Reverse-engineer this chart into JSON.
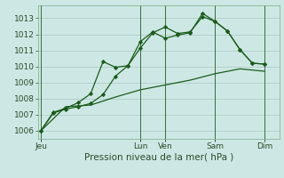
{
  "title": "Pression niveau de la mer( hPa )",
  "background_color": "#cde8e4",
  "grid_color": "#b0cccc",
  "line_color": "#1a5c1a",
  "ylim": [
    1005.5,
    1013.8
  ],
  "yticks": [
    1006,
    1007,
    1008,
    1009,
    1010,
    1011,
    1012,
    1013
  ],
  "xtick_labels": [
    "Jeu",
    "",
    "Lun",
    "Ven",
    "",
    "Sam",
    "",
    "Dim"
  ],
  "xtick_positions": [
    0,
    2,
    4,
    5,
    6,
    7,
    8,
    9
  ],
  "vlines": [
    0,
    4,
    5,
    7,
    9
  ],
  "xlim": [
    -0.1,
    9.6
  ],
  "series1_x": [
    0,
    0.5,
    1.0,
    1.5,
    2.0,
    2.5,
    3.0,
    3.5,
    4.0,
    4.5,
    5.0,
    5.5,
    6.0,
    6.5,
    7.0,
    7.5,
    8.0,
    8.5,
    9.0
  ],
  "series1_y": [
    1006.0,
    1007.1,
    1007.35,
    1007.5,
    1007.7,
    1008.25,
    1009.4,
    1010.05,
    1011.15,
    1012.1,
    1012.45,
    1012.05,
    1012.15,
    1013.1,
    1012.8,
    1012.2,
    1011.05,
    1010.2,
    1010.15
  ],
  "series2_x": [
    0,
    0.5,
    1.0,
    1.5,
    2.0,
    2.5,
    3.0,
    3.5,
    4.0,
    4.5,
    5.0,
    5.5,
    6.0,
    6.5,
    7.0,
    7.5,
    8.0,
    8.5,
    9.0
  ],
  "series2_y": [
    1006.0,
    1007.15,
    1007.4,
    1007.75,
    1008.3,
    1010.3,
    1009.95,
    1010.05,
    1011.55,
    1012.15,
    1011.75,
    1011.95,
    1012.1,
    1013.3,
    1012.8,
    1012.2,
    1011.05,
    1010.2,
    1010.15
  ],
  "series3_x": [
    0,
    1.0,
    2.0,
    3.0,
    4.0,
    5.0,
    6.0,
    7.0,
    8.0,
    9.0
  ],
  "series3_y": [
    1006.0,
    1007.5,
    1007.6,
    1008.1,
    1008.55,
    1008.85,
    1009.15,
    1009.55,
    1009.85,
    1009.7
  ],
  "ylabel_fontsize": 6.5,
  "xlabel_fontsize": 7.5,
  "xtick_fontsize": 6.5,
  "marker": "D",
  "markersize": 2.2
}
